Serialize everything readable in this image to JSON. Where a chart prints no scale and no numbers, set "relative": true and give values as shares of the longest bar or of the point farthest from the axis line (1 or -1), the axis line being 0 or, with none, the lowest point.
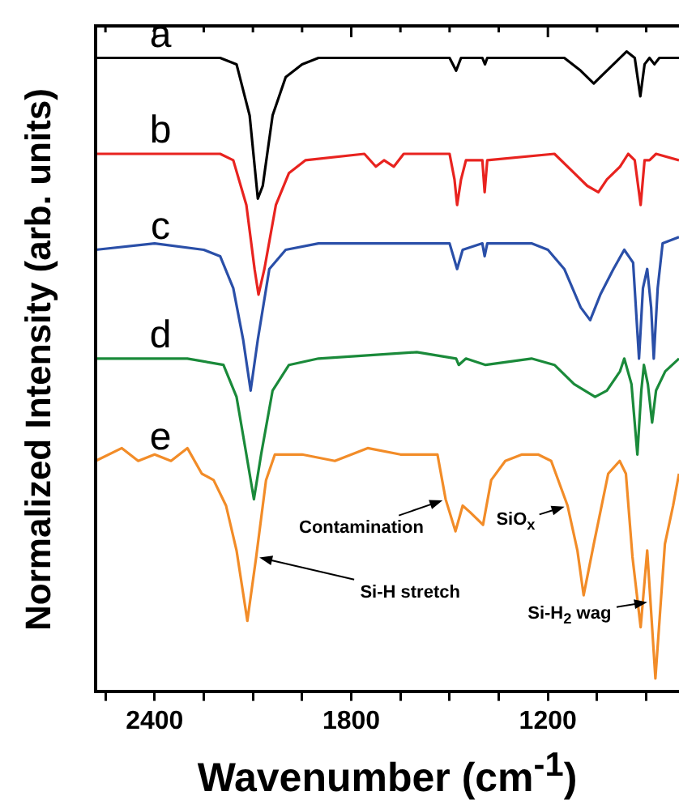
{
  "chart_data": {
    "type": "line",
    "relative": true,
    "xlabel": "Wavenumber (cm$^{-1}$)",
    "ylabel": "Normalized Intensity (arb. units)",
    "xlim": [
      2580,
      800
    ],
    "xticks": [
      {
        "value": 2550,
        "label": null
      },
      2400,
      {
        "value": 2250,
        "label": null
      },
      {
        "value": 2100,
        "label": null
      },
      {
        "value": 1950,
        "label": null
      },
      1800,
      {
        "value": 1650,
        "label": null
      },
      {
        "value": 1500,
        "label": null
      },
      {
        "value": 1350,
        "label": null
      },
      1200,
      {
        "value": 1050,
        "label": null
      },
      {
        "value": 900,
        "label": null
      }
    ],
    "grid": false,
    "legend": "left",
    "marker": "none",
    "tick_labels": "x",
    "series": [
      {
        "name": "a",
        "color": "#000000",
        "x": [
          2580,
          2200,
          2150,
          2110,
          2085,
          2070,
          2040,
          2000,
          1950,
          1900,
          1500,
          1480,
          1465,
          1400,
          1392,
          1385,
          1150,
          1100,
          1060,
          1040,
          1000,
          960,
          935,
          918,
          905,
          890,
          875,
          860,
          800
        ],
        "values": [
          0.99,
          0.99,
          0.98,
          0.9,
          0.77,
          0.79,
          0.9,
          0.96,
          0.98,
          0.99,
          0.99,
          0.97,
          0.99,
          0.99,
          0.98,
          0.99,
          0.99,
          0.97,
          0.95,
          0.96,
          0.98,
          1.0,
          0.99,
          0.93,
          0.98,
          0.99,
          0.98,
          0.99,
          0.99
        ]
      },
      {
        "name": "b",
        "color": "#e8231f",
        "x": [
          2580,
          2200,
          2160,
          2120,
          2095,
          2083,
          2065,
          2030,
          1990,
          1940,
          1760,
          1725,
          1700,
          1670,
          1640,
          1500,
          1485,
          1477,
          1465,
          1450,
          1400,
          1393,
          1385,
          1180,
          1120,
          1080,
          1046,
          1020,
          980,
          955,
          935,
          917,
          905,
          890,
          870,
          800
        ],
        "values": [
          0.84,
          0.84,
          0.83,
          0.76,
          0.66,
          0.62,
          0.66,
          0.76,
          0.81,
          0.83,
          0.84,
          0.82,
          0.83,
          0.82,
          0.84,
          0.84,
          0.8,
          0.76,
          0.8,
          0.83,
          0.83,
          0.78,
          0.83,
          0.84,
          0.81,
          0.79,
          0.78,
          0.8,
          0.82,
          0.84,
          0.83,
          0.76,
          0.83,
          0.83,
          0.84,
          0.83
        ]
      },
      {
        "name": "c",
        "color": "#2a4fa8",
        "x": [
          2580,
          2400,
          2250,
          2200,
          2160,
          2130,
          2107,
          2085,
          2050,
          2000,
          1900,
          1700,
          1500,
          1477,
          1460,
          1400,
          1393,
          1385,
          1250,
          1200,
          1150,
          1100,
          1071,
          1040,
          1000,
          967,
          940,
          922,
          910,
          897,
          885,
          877,
          865,
          850,
          800
        ],
        "values": [
          0.69,
          0.7,
          0.69,
          0.68,
          0.63,
          0.55,
          0.47,
          0.55,
          0.66,
          0.69,
          0.7,
          0.7,
          0.7,
          0.66,
          0.69,
          0.7,
          0.68,
          0.7,
          0.7,
          0.69,
          0.66,
          0.6,
          0.58,
          0.62,
          0.66,
          0.69,
          0.67,
          0.52,
          0.63,
          0.66,
          0.6,
          0.52,
          0.63,
          0.7,
          0.71
        ]
      },
      {
        "name": "d",
        "color": "#1a8a3a",
        "x": [
          2580,
          2300,
          2190,
          2150,
          2120,
          2097,
          2075,
          2040,
          1990,
          1900,
          1600,
          1480,
          1472,
          1450,
          1390,
          1250,
          1180,
          1120,
          1056,
          1020,
          980,
          967,
          945,
          927,
          915,
          907,
          895,
          882,
          870,
          842,
          800
        ],
        "values": [
          0.52,
          0.52,
          0.51,
          0.46,
          0.37,
          0.3,
          0.37,
          0.47,
          0.51,
          0.52,
          0.53,
          0.52,
          0.51,
          0.52,
          0.51,
          0.52,
          0.51,
          0.48,
          0.46,
          0.47,
          0.5,
          0.52,
          0.48,
          0.37,
          0.47,
          0.51,
          0.48,
          0.42,
          0.47,
          0.5,
          0.52
        ]
      },
      {
        "name": "e",
        "color": "#f28c28",
        "x": [
          2580,
          2500,
          2450,
          2400,
          2350,
          2300,
          2256,
          2220,
          2182,
          2150,
          2117,
          2090,
          2060,
          2033,
          1950,
          1850,
          1750,
          1650,
          1537,
          1512,
          1482,
          1460,
          1438,
          1398,
          1373,
          1330,
          1279,
          1230,
          1190,
          1140,
          1110,
          1091,
          1060,
          1016,
          981,
          962,
          942,
          917,
          897,
          872,
          843,
          818,
          800
        ],
        "values": [
          0.36,
          0.38,
          0.36,
          0.37,
          0.36,
          0.38,
          0.34,
          0.33,
          0.29,
          0.22,
          0.11,
          0.21,
          0.33,
          0.37,
          0.37,
          0.36,
          0.38,
          0.37,
          0.37,
          0.3,
          0.25,
          0.29,
          0.28,
          0.26,
          0.33,
          0.36,
          0.37,
          0.37,
          0.36,
          0.29,
          0.22,
          0.15,
          0.23,
          0.34,
          0.36,
          0.34,
          0.21,
          0.1,
          0.22,
          0.02,
          0.23,
          0.29,
          0.34
        ]
      }
    ],
    "annotations": [
      {
        "text": "Contamination",
        "x": 1512,
        "y": 0.3
      },
      {
        "text": "SiO$_{x}$",
        "x": 1140,
        "y": 0.29
      },
      {
        "text": "Si-H stretch",
        "x": 2090,
        "y": 0.21
      },
      {
        "text": "Si-H$_{2}$ wag",
        "x": 887,
        "y": 0.14
      }
    ]
  }
}
